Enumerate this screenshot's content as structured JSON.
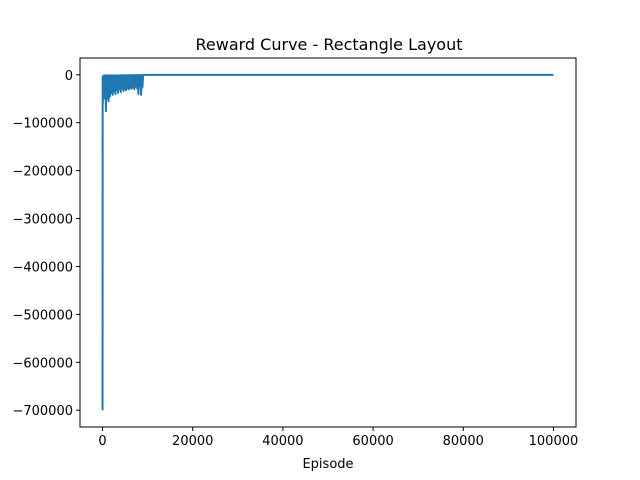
{
  "chart_data": {
    "type": "line",
    "title": "Reward Curve - Rectangle Layout",
    "xlabel": "Episode",
    "ylabel": "",
    "xlim": [
      -5000,
      105000
    ],
    "ylim": [
      -735000,
      35000
    ],
    "xticks": [
      0,
      20000,
      40000,
      60000,
      80000,
      100000
    ],
    "xtick_labels": [
      "0",
      "20000",
      "40000",
      "60000",
      "80000",
      "100000"
    ],
    "yticks": [
      0,
      -100000,
      -200000,
      -300000,
      -400000,
      -500000,
      -600000,
      -700000
    ],
    "ytick_labels": [
      "0",
      "−100000",
      "−200000",
      "−300000",
      "−400000",
      "−500000",
      "−600000",
      "−700000"
    ],
    "grid": false,
    "legend": "none",
    "series": [
      {
        "color": "#1f77b4",
        "x": [
          0,
          30,
          60,
          100,
          150,
          200,
          260,
          320,
          400,
          480,
          560,
          650,
          750,
          850,
          950,
          1050,
          1150,
          1250,
          1350,
          1500,
          1650,
          1800,
          1950,
          2100,
          2250,
          2400,
          2550,
          2700,
          2850,
          3000,
          3150,
          3300,
          3450,
          3600,
          3750,
          3900,
          4050,
          4200,
          4350,
          4500,
          4650,
          4800,
          4950,
          5100,
          5250,
          5400,
          5550,
          5700,
          5850,
          6000,
          6150,
          6300,
          6450,
          6600,
          6750,
          6900,
          7050,
          7200,
          7350,
          7500,
          7650,
          7800,
          7950,
          8100,
          8250,
          8400,
          8550,
          8700,
          8850,
          9000,
          9200,
          10000,
          20000,
          40000,
          60000,
          80000,
          100000
        ],
        "y": [
          -700000,
          -5000,
          -60000,
          -3000,
          -40000,
          -2000,
          -50000,
          -1500,
          -45000,
          -1000,
          -35000,
          -2000,
          -76000,
          -1000,
          -50000,
          -1500,
          -40000,
          -2000,
          -55000,
          -1000,
          -45000,
          -1500,
          -38000,
          -1000,
          -42000,
          -2000,
          -35000,
          -1000,
          -40000,
          -1500,
          -32000,
          -1000,
          -38000,
          -1500,
          -30000,
          -1000,
          -36000,
          -1200,
          -28000,
          -900,
          -34000,
          -1000,
          -30000,
          -800,
          -32000,
          -1000,
          -28000,
          -900,
          -30000,
          -800,
          -27000,
          -700,
          -29000,
          -800,
          -26000,
          -700,
          -30000,
          -600,
          -25000,
          -700,
          -28000,
          -600,
          -40000,
          -500,
          -24000,
          -600,
          -42000,
          -500,
          -26000,
          -400,
          -300,
          -200,
          -200,
          -200,
          -200,
          -200,
          -200
        ]
      }
    ]
  }
}
